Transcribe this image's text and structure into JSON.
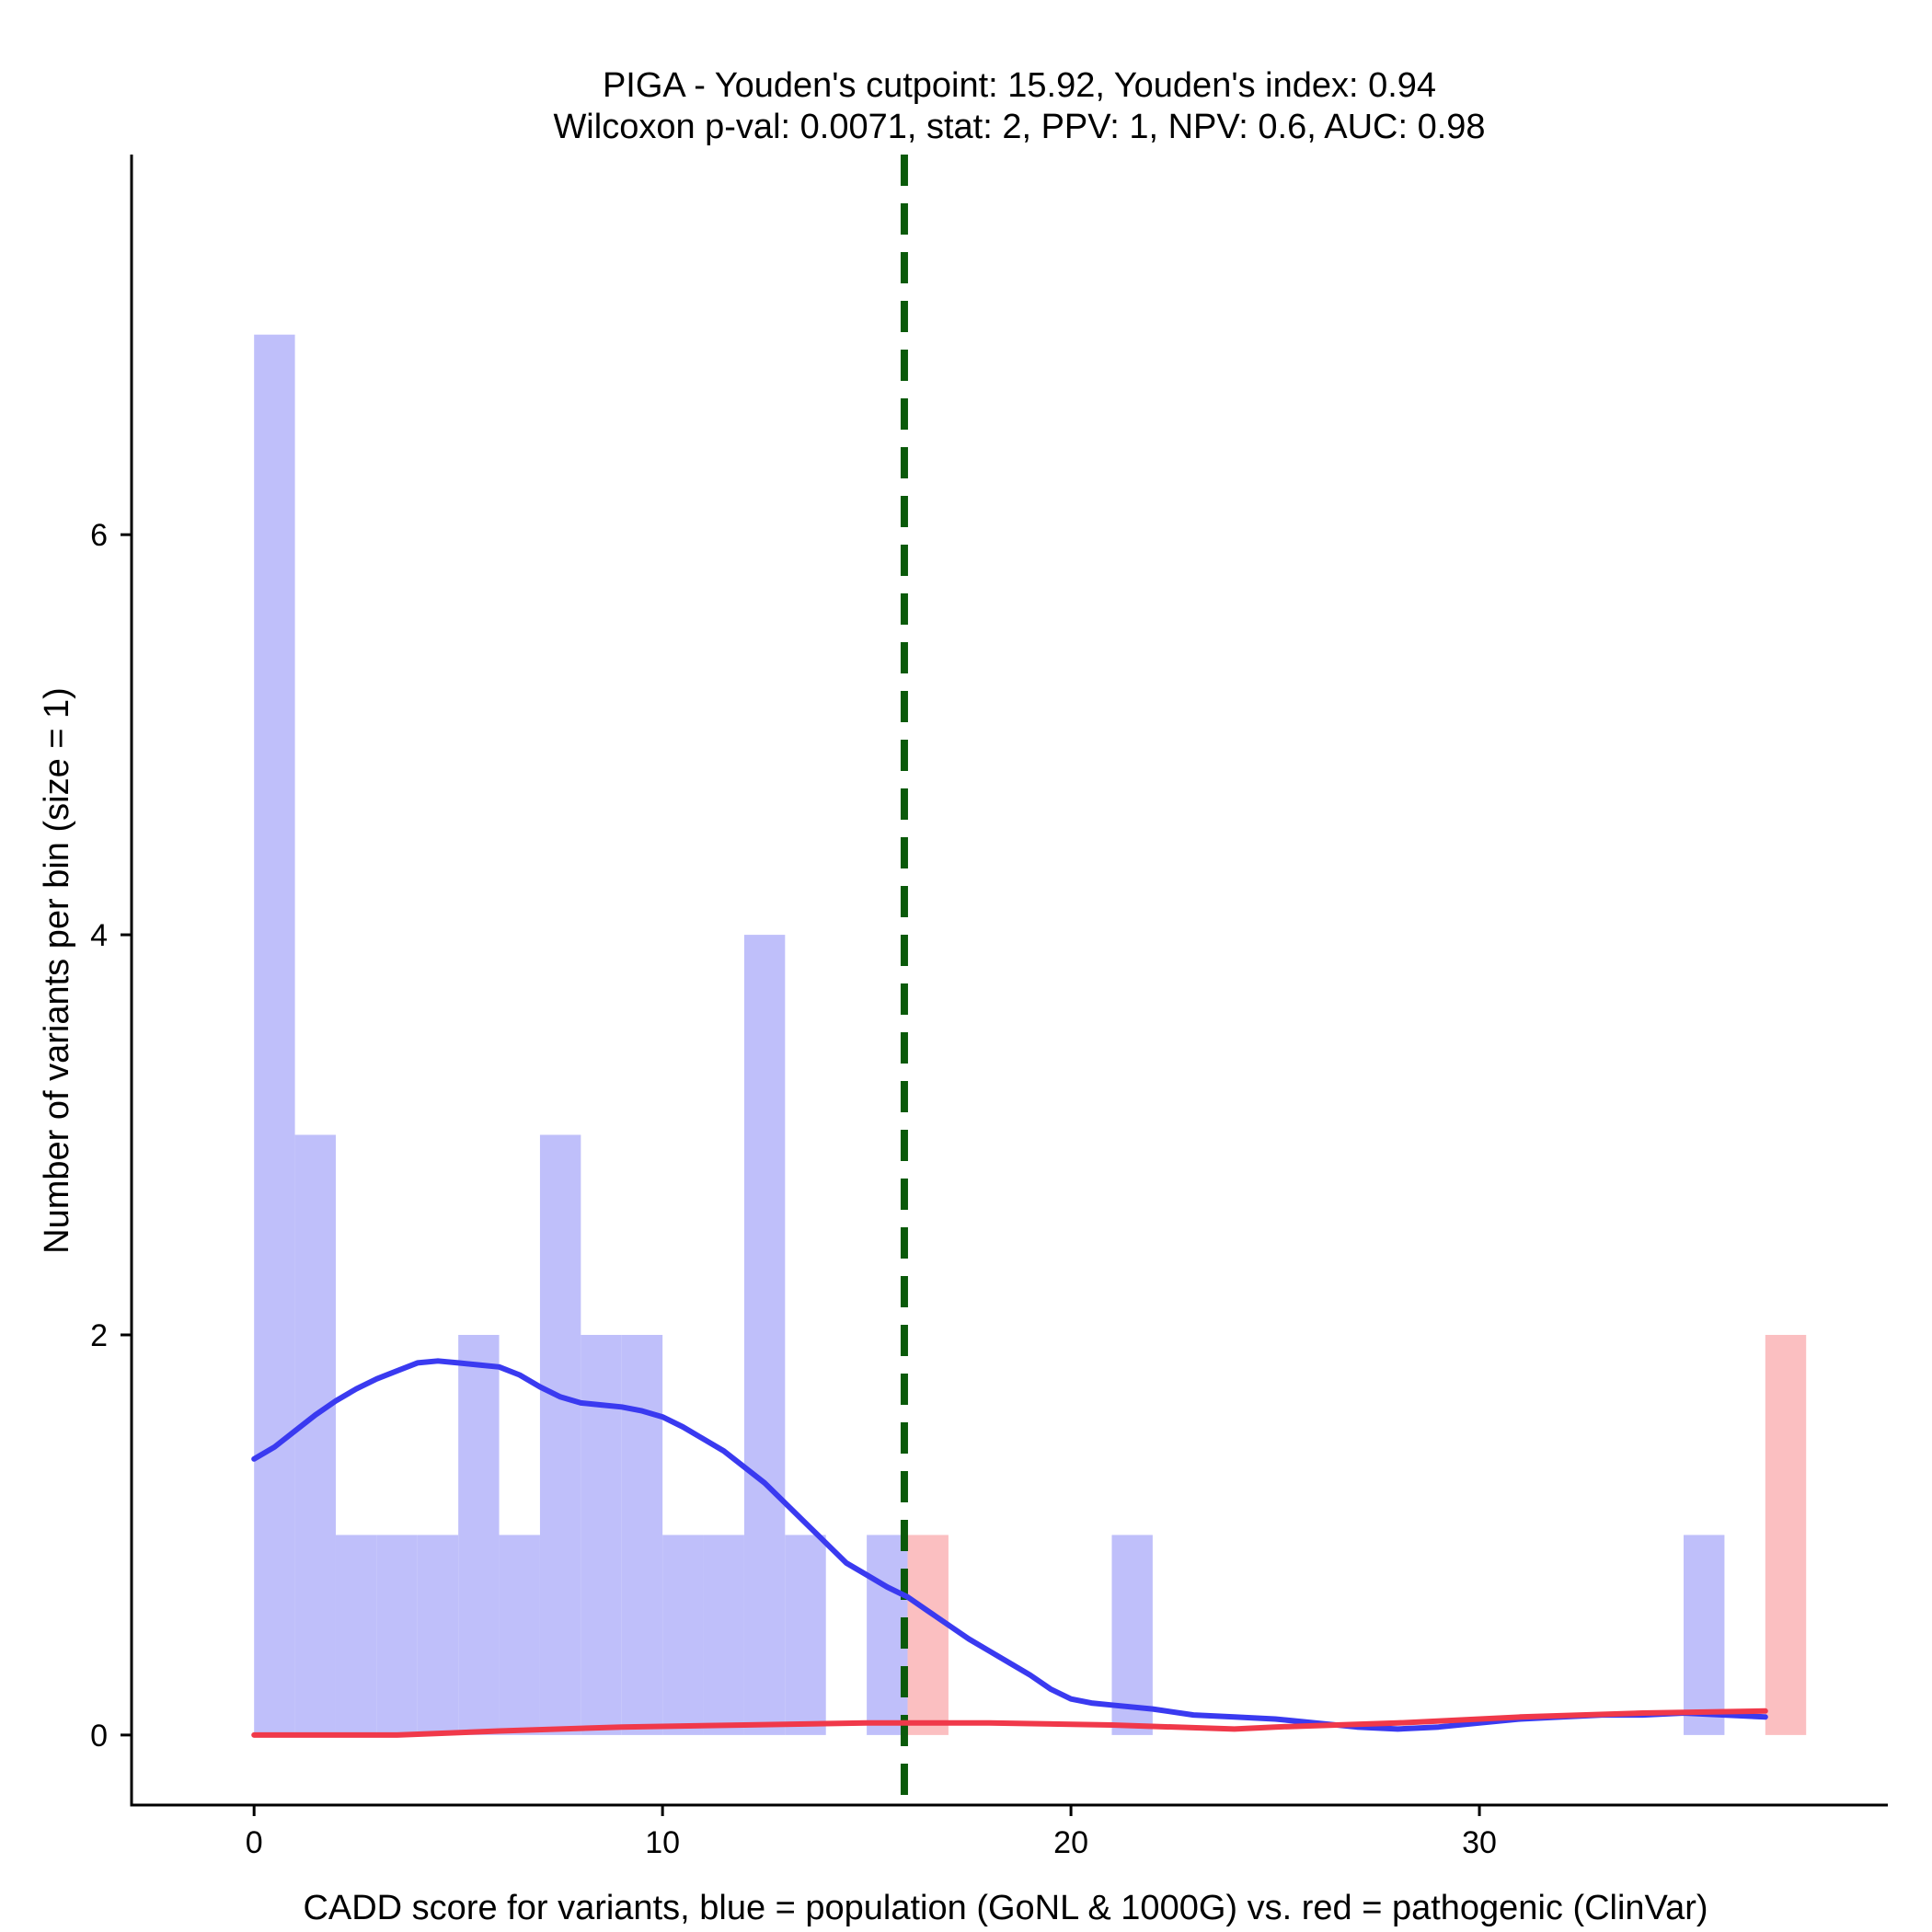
{
  "chart_data": {
    "type": "bar",
    "title_line1": "PIGA - Youden's cutpoint: 15.92, Youden's index: 0.94",
    "title_line2": "Wilcoxon p-val: 0.0071, stat: 2, PPV: 1, NPV: 0.6, AUC: 0.98",
    "xlabel": "CADD score for variants, blue = population (GoNL & 1000G) vs. red = pathogenic (ClinVar)",
    "ylabel": "Number of variants per bin (size = 1)",
    "xlim": [
      -3,
      40
    ],
    "ylim": [
      -0.35,
      7.9
    ],
    "xticks": [
      0,
      10,
      20,
      30
    ],
    "yticks": [
      0,
      2,
      4,
      6
    ],
    "bin_width": 1,
    "cutpoint": 15.92,
    "colors": {
      "population_bar": "#bfbffa",
      "pathogenic_bar": "#fbbfc1",
      "population_line": "#3a3af0",
      "pathogenic_line": "#f0394a",
      "cutpoint_line": "#0a5a0a",
      "axis": "#000000"
    },
    "series": [
      {
        "bins": [
          {
            "x0": 0,
            "count": 7
          },
          {
            "x0": 1,
            "count": 3
          },
          {
            "x0": 2,
            "count": 1
          },
          {
            "x0": 3,
            "count": 1
          },
          {
            "x0": 4,
            "count": 1
          },
          {
            "x0": 5,
            "count": 2
          },
          {
            "x0": 6,
            "count": 1
          },
          {
            "x0": 7,
            "count": 3
          },
          {
            "x0": 8,
            "count": 2
          },
          {
            "x0": 9,
            "count": 2
          },
          {
            "x0": 10,
            "count": 1
          },
          {
            "x0": 11,
            "count": 1
          },
          {
            "x0": 12,
            "count": 4
          },
          {
            "x0": 13,
            "count": 1
          },
          {
            "x0": 15,
            "count": 1
          },
          {
            "x0": 21,
            "count": 1
          },
          {
            "x0": 35,
            "count": 1
          }
        ],
        "density": [
          [
            0,
            1.38
          ],
          [
            0.5,
            1.44
          ],
          [
            1,
            1.52
          ],
          [
            1.5,
            1.6
          ],
          [
            2,
            1.67
          ],
          [
            2.5,
            1.73
          ],
          [
            3,
            1.78
          ],
          [
            3.5,
            1.82
          ],
          [
            4,
            1.86
          ],
          [
            4.5,
            1.87
          ],
          [
            5,
            1.86
          ],
          [
            5.5,
            1.85
          ],
          [
            6,
            1.84
          ],
          [
            6.5,
            1.8
          ],
          [
            7,
            1.74
          ],
          [
            7.5,
            1.69
          ],
          [
            8,
            1.66
          ],
          [
            8.5,
            1.65
          ],
          [
            9,
            1.64
          ],
          [
            9.5,
            1.62
          ],
          [
            10,
            1.59
          ],
          [
            10.5,
            1.54
          ],
          [
            11,
            1.48
          ],
          [
            11.5,
            1.42
          ],
          [
            12,
            1.34
          ],
          [
            12.5,
            1.26
          ],
          [
            13,
            1.16
          ],
          [
            13.5,
            1.06
          ],
          [
            14,
            0.96
          ],
          [
            14.5,
            0.86
          ],
          [
            15,
            0.8
          ],
          [
            15.5,
            0.74
          ],
          [
            16,
            0.69
          ],
          [
            16.5,
            0.62
          ],
          [
            17,
            0.55
          ],
          [
            17.5,
            0.48
          ],
          [
            18,
            0.42
          ],
          [
            18.5,
            0.36
          ],
          [
            19,
            0.3
          ],
          [
            19.5,
            0.23
          ],
          [
            20,
            0.18
          ],
          [
            20.5,
            0.16
          ],
          [
            21,
            0.15
          ],
          [
            22,
            0.13
          ],
          [
            23,
            0.1
          ],
          [
            24,
            0.09
          ],
          [
            25,
            0.08
          ],
          [
            26,
            0.06
          ],
          [
            27,
            0.04
          ],
          [
            28,
            0.03
          ],
          [
            29,
            0.04
          ],
          [
            30,
            0.06
          ],
          [
            31,
            0.08
          ],
          [
            32,
            0.09
          ],
          [
            33,
            0.1
          ],
          [
            34,
            0.1
          ],
          [
            35,
            0.11
          ],
          [
            36,
            0.1
          ],
          [
            37,
            0.09
          ]
        ]
      },
      {
        "bins": [
          {
            "x0": 16,
            "count": 1
          },
          {
            "x0": 37,
            "count": 2
          }
        ],
        "density": [
          [
            0,
            0.0
          ],
          [
            2,
            0.0
          ],
          [
            3.5,
            0.0
          ],
          [
            6,
            0.02
          ],
          [
            9,
            0.04
          ],
          [
            12,
            0.05
          ],
          [
            15,
            0.06
          ],
          [
            18,
            0.06
          ],
          [
            21,
            0.05
          ],
          [
            24,
            0.03
          ],
          [
            25,
            0.04
          ],
          [
            28,
            0.06
          ],
          [
            31,
            0.09
          ],
          [
            34,
            0.11
          ],
          [
            37,
            0.12
          ]
        ]
      }
    ]
  }
}
